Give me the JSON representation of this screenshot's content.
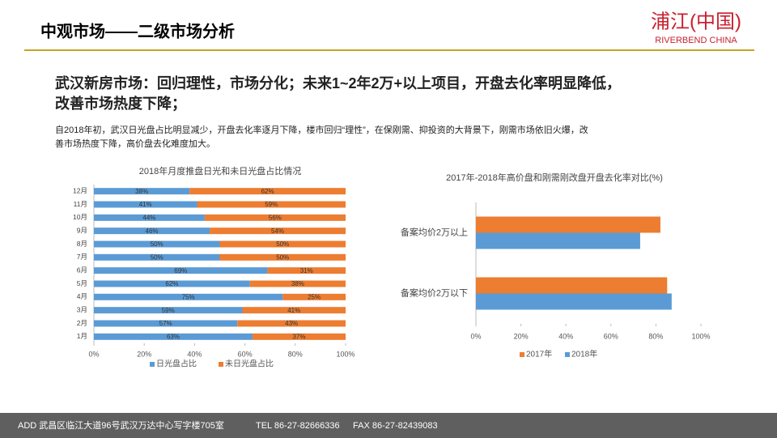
{
  "header": {
    "title": "中观市场——二级市场分析",
    "logo_name": "浦江(中国)",
    "logo_sub": "RIVERBEND CHINA"
  },
  "heading": {
    "line1": "武汉新房市场：回归理性，市场分化；未来1~2年2万+以上项目，开盘去化率明显降低，",
    "line2": "改善市场热度下降；"
  },
  "body": {
    "line1": "自2018年初，武汉日光盘占比明显减少，开盘去化率逐月下降，楼市回归“理性”，在保刚需、抑投资的大背景下，刚需市场依旧火爆，改",
    "line2": "善市场热度下降，高价盘去化难度加大。"
  },
  "footer": {
    "address": "ADD  武昌区临江大道96号武汉万达中心写字楼705室",
    "tel": "TEL  86-27-82666336",
    "fax": "FAX  86-27-82439083"
  },
  "chart_data": [
    {
      "type": "bar",
      "orientation": "horizontal",
      "stacked": true,
      "title": "2018年月度推盘日光和未日光盘占比情况",
      "categories": [
        "1月",
        "2月",
        "3月",
        "4月",
        "5月",
        "6月",
        "7月",
        "8月",
        "9月",
        "10月",
        "11月",
        "12月"
      ],
      "series": [
        {
          "name": "日光盘占比",
          "color": "#5b9bd5",
          "values": [
            63,
            57,
            59,
            75,
            62,
            69,
            50,
            50,
            46,
            44,
            41,
            38
          ],
          "value_labels": [
            "63%",
            "57%",
            "59%",
            "75%",
            "62%",
            "69%",
            "50%",
            "50%",
            "46%",
            "44%",
            "41%",
            "38%"
          ]
        },
        {
          "name": "未日光盘占比",
          "color": "#ed7d31",
          "values": [
            37,
            43,
            41,
            25,
            38,
            31,
            50,
            50,
            54,
            56,
            59,
            62
          ],
          "value_labels": [
            "37%",
            "43%",
            "41%",
            "25%",
            "38%",
            "31%",
            "50%",
            "50%",
            "54%",
            "56%",
            "59%",
            "62%"
          ]
        }
      ],
      "xlim": [
        0,
        100
      ],
      "xticks": [
        {
          "value": 0,
          "label": "0%"
        },
        {
          "value": 20,
          "label": "20%"
        },
        {
          "value": 40,
          "label": "40%"
        },
        {
          "value": 60,
          "label": "60%"
        },
        {
          "value": 80,
          "label": "80%"
        },
        {
          "value": 100,
          "label": "100%"
        }
      ]
    },
    {
      "type": "bar",
      "orientation": "horizontal",
      "stacked": false,
      "title": "2017年-2018年高价盘和刚需刚改盘开盘去化率对比(%)",
      "categories": [
        "备案均价2万以下",
        "备案均价2万以上"
      ],
      "series": [
        {
          "name": "2017年",
          "color": "#ed7d31",
          "values": [
            85,
            82
          ]
        },
        {
          "name": "2018年",
          "color": "#5b9bd5",
          "values": [
            87,
            73
          ]
        }
      ],
      "xlim": [
        0,
        100
      ],
      "xticks": [
        {
          "value": 0,
          "label": "0%"
        },
        {
          "value": 20,
          "label": "20%"
        },
        {
          "value": 40,
          "label": "40%"
        },
        {
          "value": 60,
          "label": "60%"
        },
        {
          "value": 80,
          "label": "80%"
        },
        {
          "value": 100,
          "label": "100%"
        }
      ]
    }
  ]
}
